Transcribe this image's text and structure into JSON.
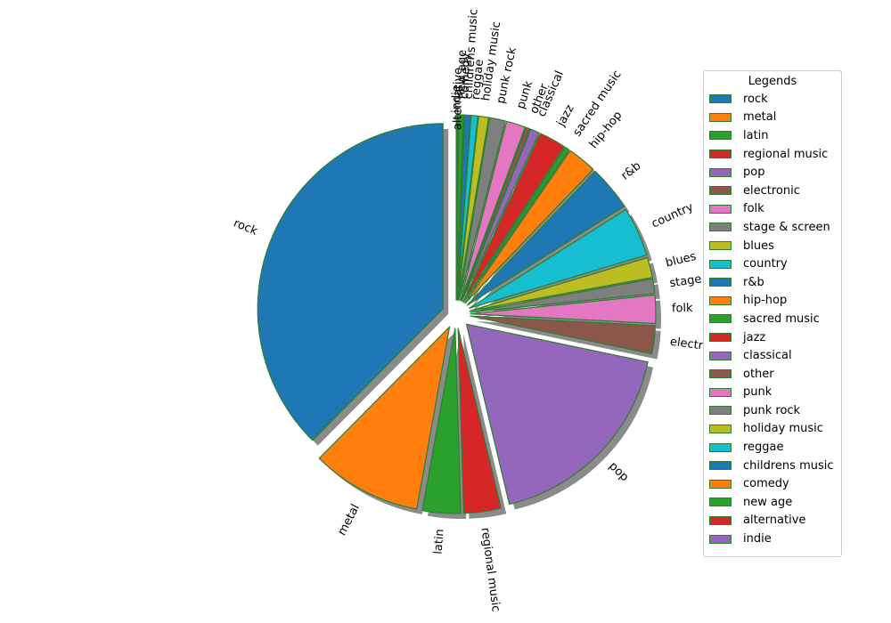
{
  "chart_data": {
    "type": "pie",
    "legend": {
      "title": "Legends",
      "placement": "right"
    },
    "edge_color": "#2e7d32",
    "shadow": true,
    "labels": [
      "rock",
      "metal",
      "latin",
      "regional music",
      "pop",
      "electronic",
      "folk",
      "stage & screen",
      "blues",
      "country",
      "r&b",
      "hip-hop",
      "sacred music",
      "jazz",
      "classical",
      "other",
      "punk",
      "punk rock",
      "holiday music",
      "reggae",
      "childrens music",
      "comedy",
      "new age",
      "alternative",
      "indie"
    ],
    "values": [
      38.4,
      9.8,
      3.4,
      3.3,
      18.4,
      2.5,
      2.5,
      1.3,
      1.8,
      4.4,
      4.0,
      2.6,
      0.4,
      2.4,
      0.8,
      0.4,
      1.7,
      1.4,
      0.9,
      0.6,
      0.5,
      0.1,
      0.4,
      0.1,
      0.1
    ],
    "colors": [
      "#1f77b4",
      "#ff7f0e",
      "#2ca02c",
      "#d62728",
      "#9467bd",
      "#8c564b",
      "#e377c2",
      "#7f7f7f",
      "#bcbd22",
      "#17becf",
      "#1f77b4",
      "#ff7f0e",
      "#2ca02c",
      "#d62728",
      "#9467bd",
      "#8c564b",
      "#e377c2",
      "#7f7f7f",
      "#bcbd22",
      "#17becf",
      "#1f77b4",
      "#ff7f0e",
      "#2ca02c",
      "#d62728",
      "#9467bd"
    ]
  }
}
